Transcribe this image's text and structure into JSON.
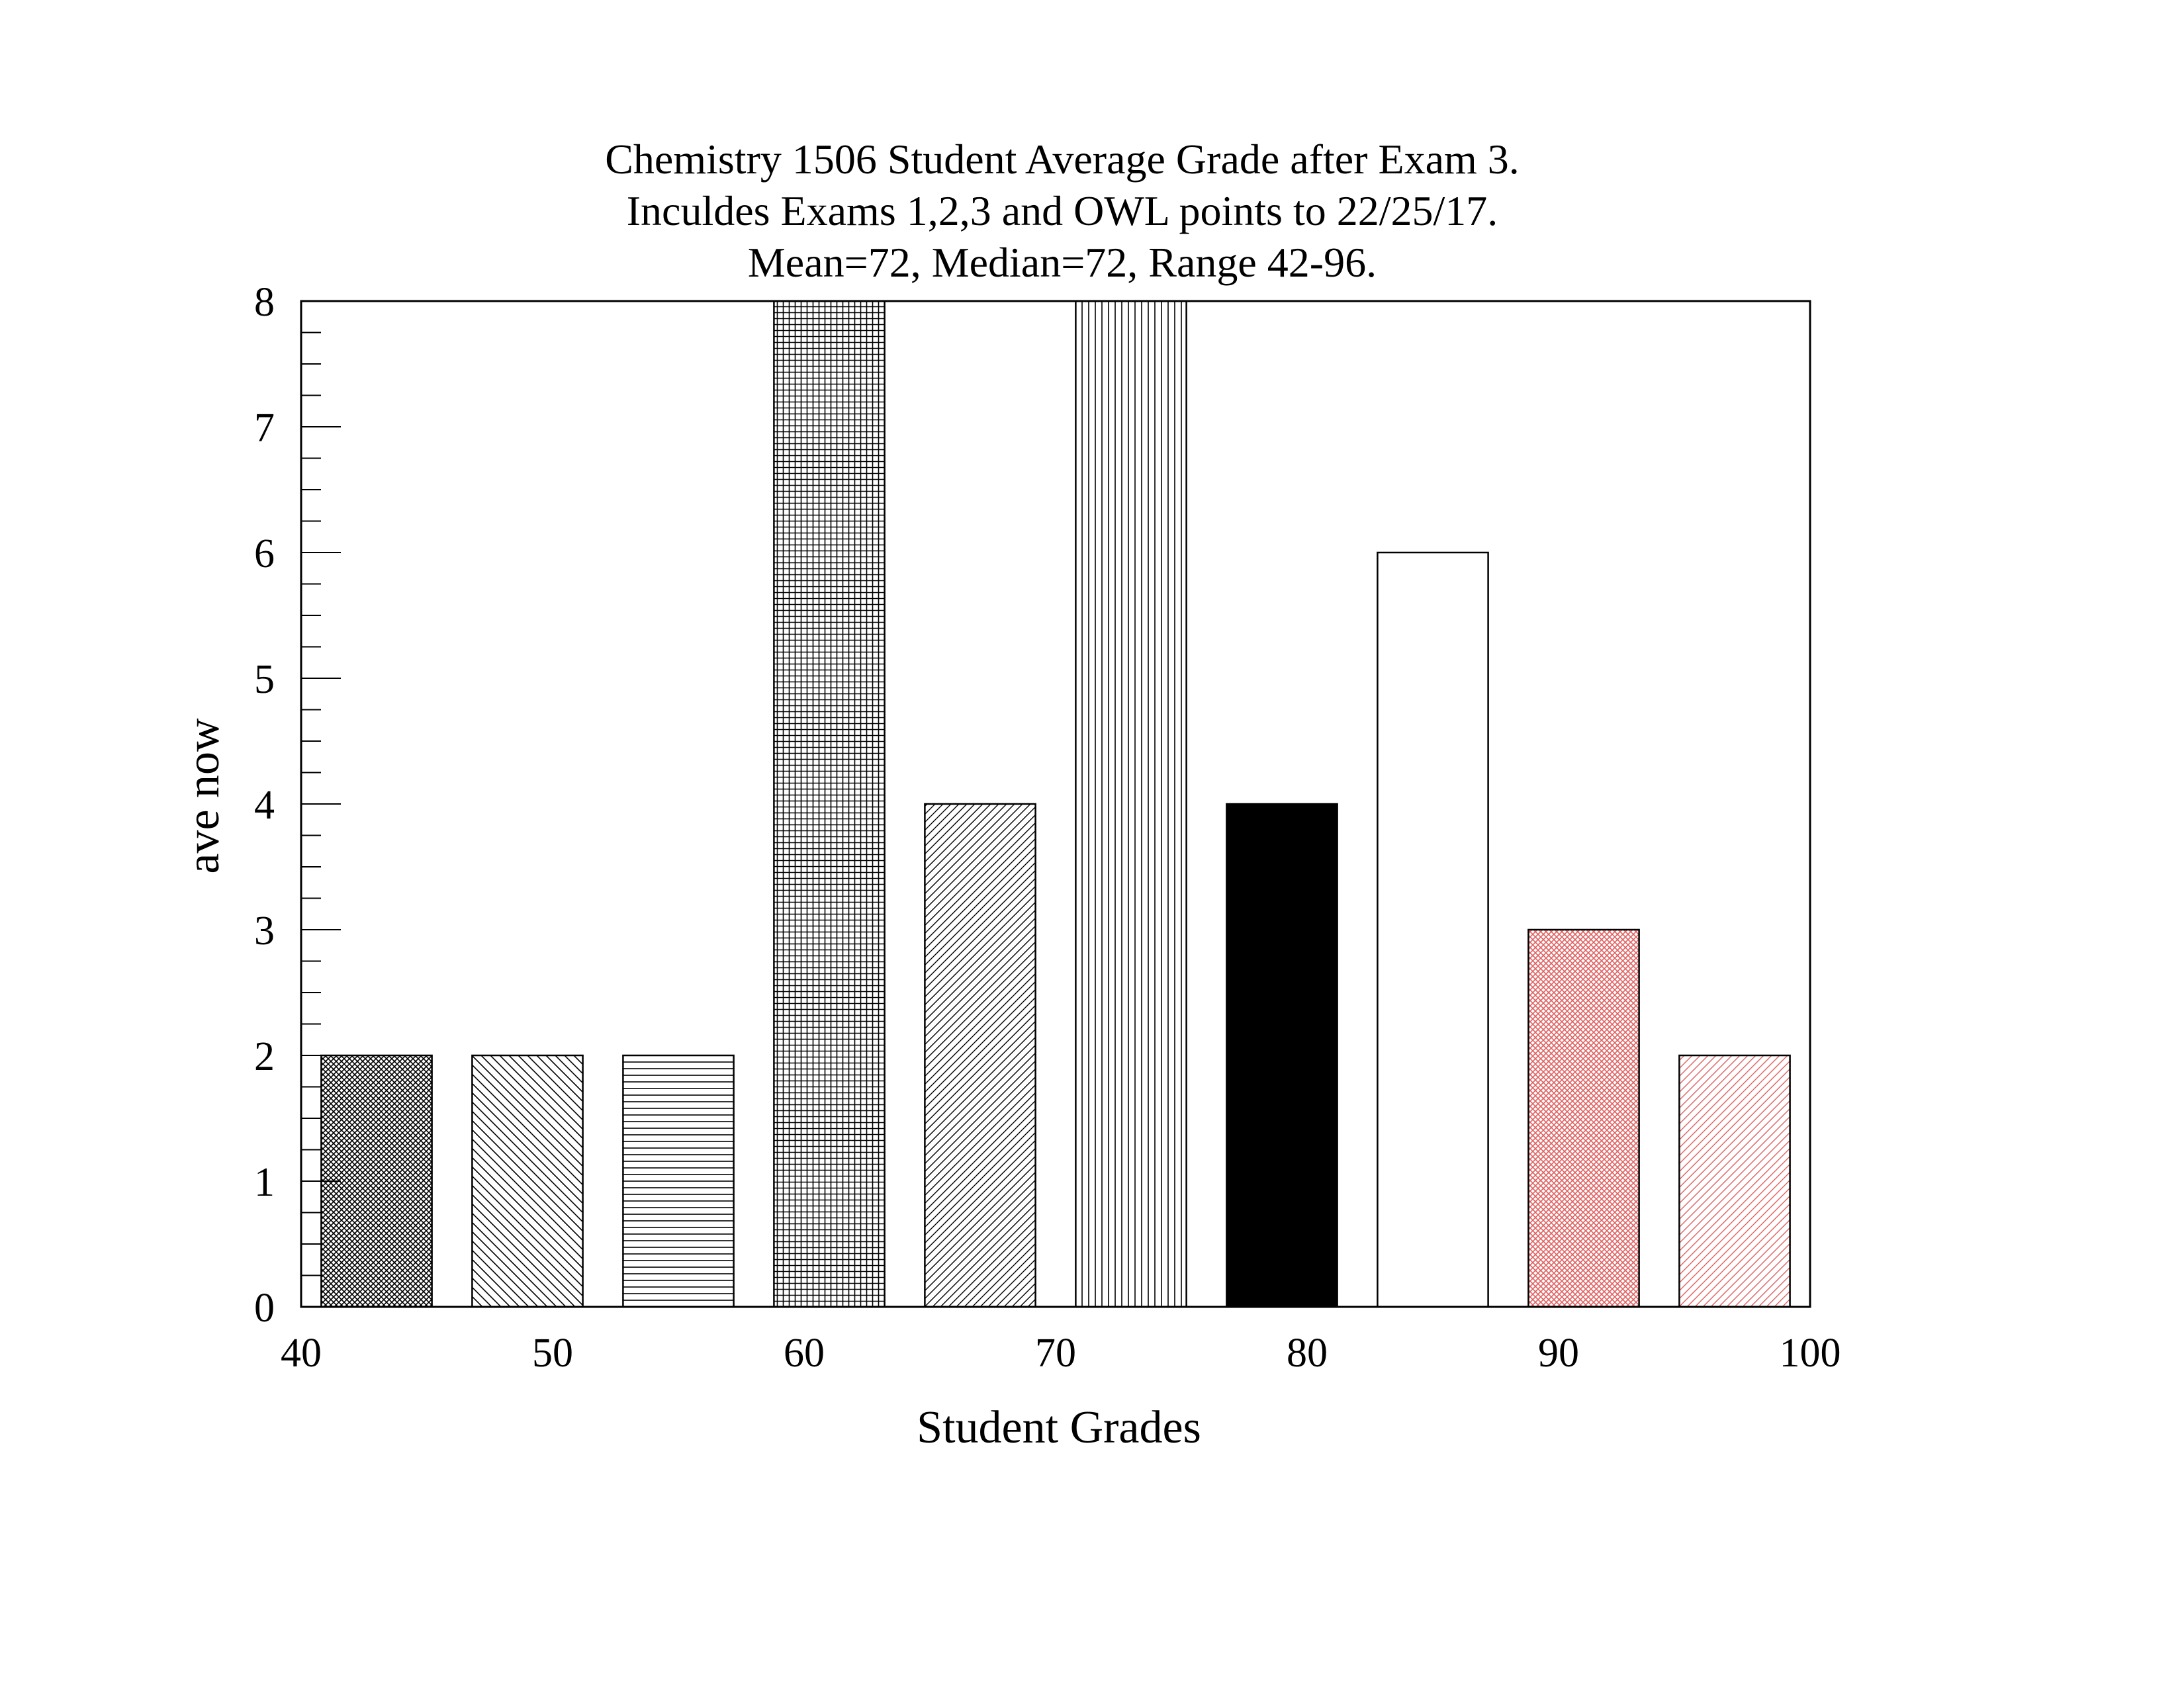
{
  "chart_data": {
    "type": "bar",
    "title": [
      "Chemistry 1506 Student Average Grade after Exam 3.",
      "Inculdes Exams 1,2,3 and OWL points to 22/25/17.",
      "Mean=72, Median=72, Range 42-96."
    ],
    "xlabel": "Student Grades",
    "ylabel": "ave now",
    "xlim": [
      40,
      100
    ],
    "ylim": [
      0,
      8
    ],
    "x_ticks": [
      "40",
      "50",
      "60",
      "70",
      "80",
      "90",
      "100"
    ],
    "y_ticks": [
      "0",
      "1",
      "2",
      "3",
      "4",
      "5",
      "6",
      "7",
      "8"
    ],
    "bars": [
      {
        "x_start": 40.8,
        "x_end": 45.2,
        "value": 2,
        "fill": "crosshatch-dense",
        "color": "#000000"
      },
      {
        "x_start": 46.8,
        "x_end": 51.2,
        "value": 2,
        "fill": "diagonal-back",
        "color": "#000000"
      },
      {
        "x_start": 52.8,
        "x_end": 57.2,
        "value": 2,
        "fill": "horizontal",
        "color": "#000000"
      },
      {
        "x_start": 58.8,
        "x_end": 63.2,
        "value": 8,
        "fill": "grid",
        "color": "#000000"
      },
      {
        "x_start": 64.8,
        "x_end": 69.2,
        "value": 4,
        "fill": "diagonal-forward",
        "color": "#000000"
      },
      {
        "x_start": 70.8,
        "x_end": 75.2,
        "value": 8,
        "fill": "vertical",
        "color": "#000000"
      },
      {
        "x_start": 76.8,
        "x_end": 81.2,
        "value": 4,
        "fill": "solid",
        "color": "#000000"
      },
      {
        "x_start": 82.8,
        "x_end": 87.2,
        "value": 6,
        "fill": "none",
        "color": "#000000"
      },
      {
        "x_start": 88.8,
        "x_end": 93.2,
        "value": 3,
        "fill": "crosshatch-dense",
        "color": "#e06060"
      },
      {
        "x_start": 94.8,
        "x_end": 99.2,
        "value": 2,
        "fill": "diagonal-forward",
        "color": "#e06060"
      }
    ]
  }
}
